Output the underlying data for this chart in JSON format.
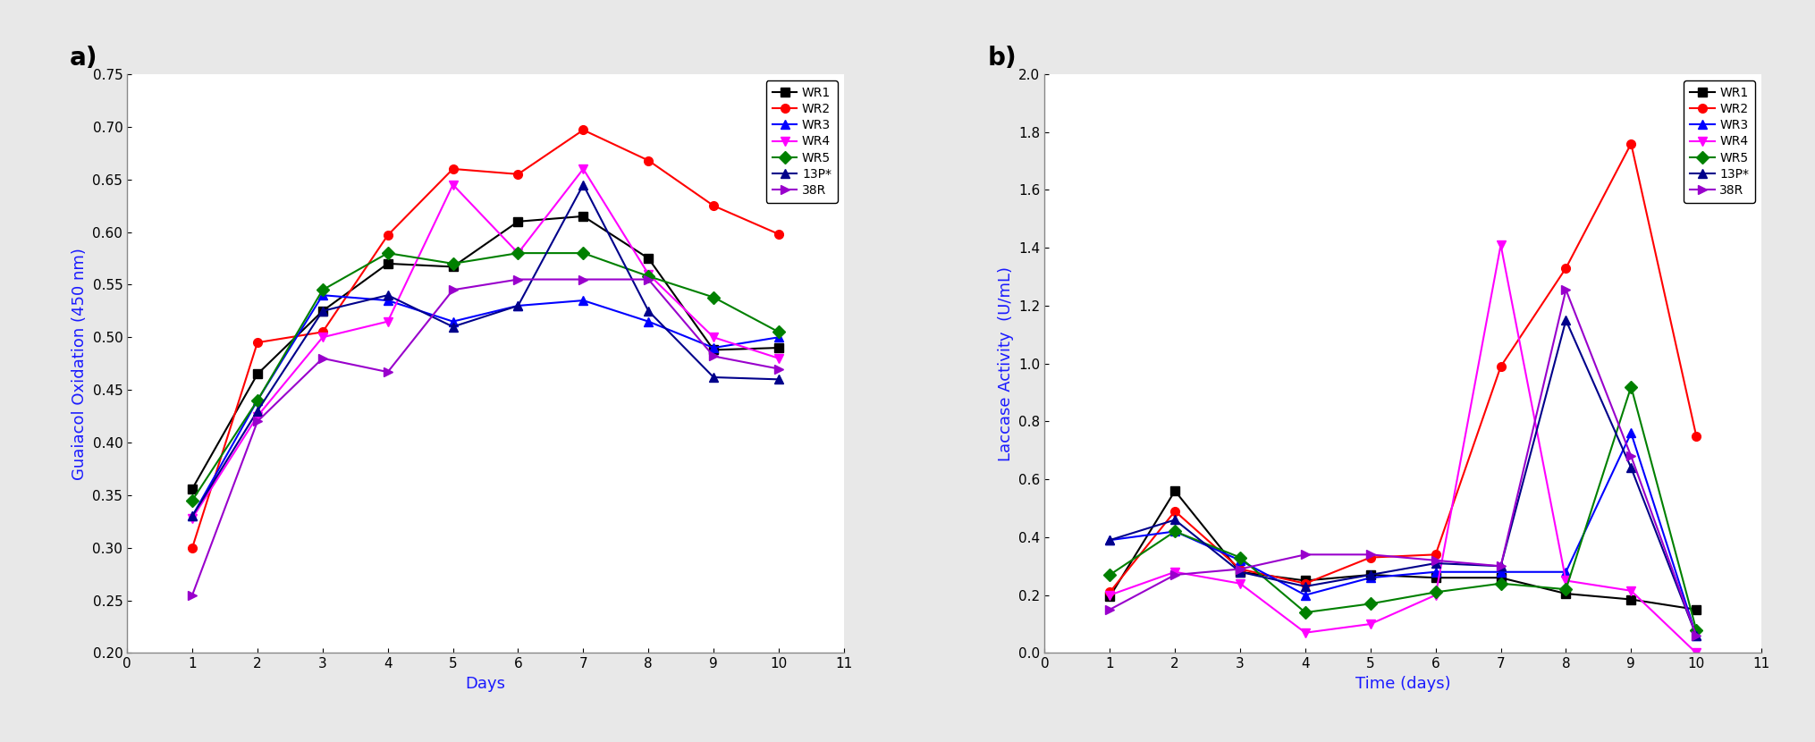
{
  "panel_a": {
    "label": "a)",
    "xlabel": "Days",
    "ylabel": "Guaiacol Oxidation (450 nm)",
    "xlim": [
      0,
      11
    ],
    "ylim": [
      0.2,
      0.75
    ],
    "yticks": [
      0.2,
      0.25,
      0.3,
      0.35,
      0.4,
      0.45,
      0.5,
      0.55,
      0.6,
      0.65,
      0.7,
      0.75
    ],
    "xticks": [
      0,
      1,
      2,
      3,
      4,
      5,
      6,
      7,
      8,
      9,
      10,
      11
    ],
    "series": [
      {
        "name": "WR1",
        "x": [
          1,
          2,
          3,
          4,
          5,
          6,
          7,
          8,
          9,
          10
        ],
        "y": [
          0.356,
          0.465,
          0.525,
          0.57,
          0.567,
          0.61,
          0.615,
          0.575,
          0.488,
          0.49
        ],
        "color": "#000000",
        "marker": "s"
      },
      {
        "name": "WR2",
        "x": [
          1,
          2,
          3,
          4,
          5,
          6,
          7,
          8,
          9,
          10
        ],
        "y": [
          0.3,
          0.495,
          0.505,
          0.597,
          0.66,
          0.655,
          0.697,
          0.668,
          0.625,
          0.598
        ],
        "color": "#ff0000",
        "marker": "o"
      },
      {
        "name": "WR3",
        "x": [
          1,
          2,
          3,
          4,
          5,
          6,
          7,
          8,
          9,
          10
        ],
        "y": [
          0.33,
          0.44,
          0.54,
          0.535,
          0.515,
          0.53,
          0.535,
          0.515,
          0.49,
          0.5
        ],
        "color": "#0000ff",
        "marker": "^"
      },
      {
        "name": "WR4",
        "x": [
          1,
          2,
          3,
          4,
          5,
          6,
          7,
          8,
          9,
          10
        ],
        "y": [
          0.328,
          0.425,
          0.5,
          0.515,
          0.645,
          0.58,
          0.66,
          0.56,
          0.5,
          0.48
        ],
        "color": "#ff00ff",
        "marker": "v"
      },
      {
        "name": "WR5",
        "x": [
          1,
          2,
          3,
          4,
          5,
          6,
          7,
          8,
          9,
          10
        ],
        "y": [
          0.345,
          0.44,
          0.545,
          0.58,
          0.57,
          0.58,
          0.58,
          0.558,
          0.538,
          0.505
        ],
        "color": "#008000",
        "marker": "D"
      },
      {
        "name": "13P*",
        "x": [
          1,
          2,
          3,
          4,
          5,
          6,
          7,
          8,
          9,
          10
        ],
        "y": [
          0.33,
          0.43,
          0.525,
          0.54,
          0.51,
          0.53,
          0.645,
          0.525,
          0.462,
          0.46
        ],
        "color": "#00008b",
        "marker": "^"
      },
      {
        "name": "38R",
        "x": [
          1,
          2,
          3,
          4,
          5,
          6,
          7,
          8,
          9,
          10
        ],
        "y": [
          0.255,
          0.42,
          0.48,
          0.467,
          0.545,
          0.555,
          0.555,
          0.555,
          0.482,
          0.47
        ],
        "color": "#9900cc",
        "marker": ">"
      }
    ]
  },
  "panel_b": {
    "label": "b)",
    "xlabel": "Time (days)",
    "ylabel": "Laccase Activity  (U/mL)",
    "xlim": [
      0,
      11
    ],
    "ylim": [
      0.0,
      2.0
    ],
    "yticks": [
      0.0,
      0.2,
      0.4,
      0.6,
      0.8,
      1.0,
      1.2,
      1.4,
      1.6,
      1.8,
      2.0
    ],
    "xticks": [
      0,
      1,
      2,
      3,
      4,
      5,
      6,
      7,
      8,
      9,
      10,
      11
    ],
    "series": [
      {
        "name": "WR1",
        "x": [
          1,
          2,
          3,
          4,
          5,
          6,
          7,
          8,
          9,
          10
        ],
        "y": [
          0.195,
          0.56,
          0.28,
          0.25,
          0.27,
          0.26,
          0.26,
          0.205,
          0.185,
          0.15
        ],
        "color": "#000000",
        "marker": "s"
      },
      {
        "name": "WR2",
        "x": [
          1,
          2,
          3,
          4,
          5,
          6,
          7,
          8,
          9,
          10
        ],
        "y": [
          0.21,
          0.49,
          0.29,
          0.24,
          0.33,
          0.34,
          0.99,
          1.33,
          1.76,
          0.75
        ],
        "color": "#ff0000",
        "marker": "o"
      },
      {
        "name": "WR3",
        "x": [
          1,
          2,
          3,
          4,
          5,
          6,
          7,
          8,
          9,
          10
        ],
        "y": [
          0.39,
          0.42,
          0.32,
          0.2,
          0.26,
          0.28,
          0.28,
          0.28,
          0.76,
          0.06
        ],
        "color": "#0000ff",
        "marker": "^"
      },
      {
        "name": "WR4",
        "x": [
          1,
          2,
          3,
          4,
          5,
          6,
          7,
          8,
          9,
          10
        ],
        "y": [
          0.2,
          0.28,
          0.24,
          0.07,
          0.1,
          0.2,
          1.41,
          0.25,
          0.215,
          0.0
        ],
        "color": "#ff00ff",
        "marker": "v"
      },
      {
        "name": "WR5",
        "x": [
          1,
          2,
          3,
          4,
          5,
          6,
          7,
          8,
          9,
          10
        ],
        "y": [
          0.27,
          0.42,
          0.33,
          0.14,
          0.17,
          0.21,
          0.24,
          0.22,
          0.92,
          0.08
        ],
        "color": "#008000",
        "marker": "D"
      },
      {
        "name": "13P*",
        "x": [
          1,
          2,
          3,
          4,
          5,
          6,
          7,
          8,
          9,
          10
        ],
        "y": [
          0.39,
          0.46,
          0.28,
          0.23,
          0.27,
          0.31,
          0.3,
          1.15,
          0.64,
          0.06
        ],
        "color": "#00008b",
        "marker": "^"
      },
      {
        "name": "38R",
        "x": [
          1,
          2,
          3,
          4,
          5,
          6,
          7,
          8,
          9,
          10
        ],
        "y": [
          0.15,
          0.27,
          0.29,
          0.34,
          0.34,
          0.32,
          0.3,
          1.255,
          0.68,
          0.06
        ],
        "color": "#9900cc",
        "marker": ">"
      }
    ]
  },
  "fig_bg": "#e8e8e8",
  "axes_bg": "#ffffff",
  "spine_color": "#1a1aff",
  "tick_color": "#000000",
  "label_color": "#1a1aff",
  "panel_label_color": "#000000",
  "legend_border": "#000000",
  "linewidth": 1.5,
  "markersize": 7,
  "label_fontsize": 13,
  "tick_fontsize": 11,
  "panel_label_fontsize": 20
}
